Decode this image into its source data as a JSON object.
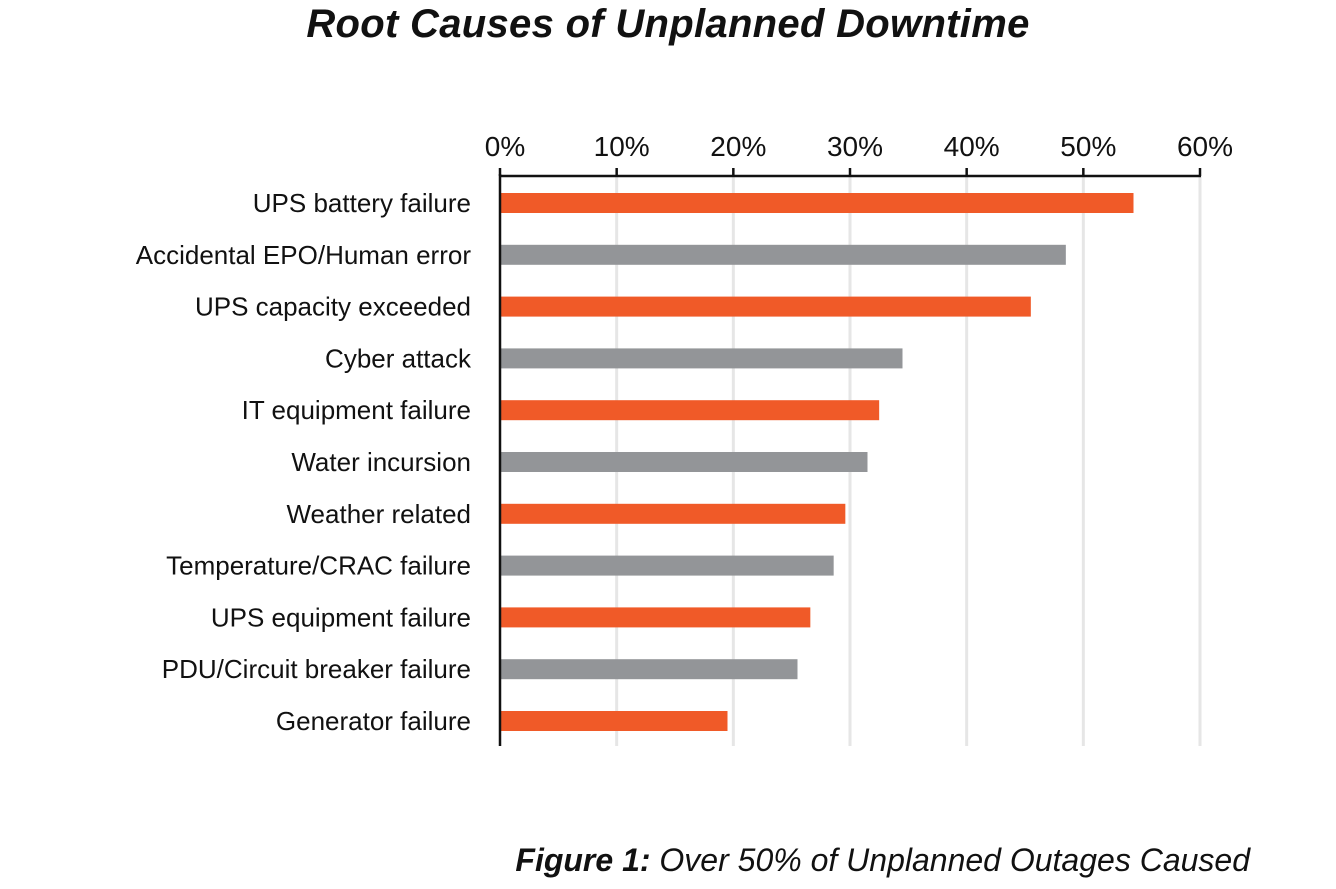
{
  "chart_data": {
    "type": "bar",
    "orientation": "horizontal",
    "title": "Root Causes of Unplanned Downtime",
    "categories": [
      "UPS battery failure",
      "Accidental EPO/Human error",
      "UPS capacity exceeded",
      "Cyber attack",
      "IT equipment failure",
      "Water incursion",
      "Weather related",
      "Temperature/CRAC failure",
      "UPS equipment failure",
      "PDU/Circuit breaker failure",
      "Generator failure"
    ],
    "values": [
      54.3,
      48.5,
      45.5,
      34.5,
      32.5,
      31.5,
      29.6,
      28.6,
      26.6,
      25.5,
      19.5
    ],
    "bar_colors": [
      "#f05a28",
      "#939598",
      "#f05a28",
      "#939598",
      "#f05a28",
      "#939598",
      "#f05a28",
      "#939598",
      "#f05a28",
      "#939598",
      "#f05a28"
    ],
    "xlim": [
      0,
      60
    ],
    "x_ticks": [
      0,
      10,
      20,
      30,
      40,
      50,
      60
    ],
    "x_tick_labels": [
      "0%",
      "10%",
      "20%",
      "30%",
      "40%",
      "50%",
      "60%"
    ],
    "x_axis_position": "top",
    "grid": true,
    "grid_color": "#e6e6e6",
    "xlabel": "",
    "ylabel": ""
  },
  "caption": {
    "label": "Figure 1:",
    "text": " Over 50% of Unplanned Outages Caused"
  }
}
